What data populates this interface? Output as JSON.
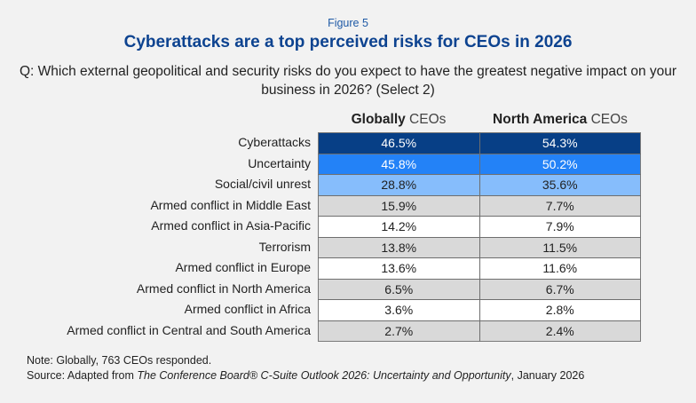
{
  "figure_label": "Figure 5",
  "title": "Cyberattacks are a top perceived risks for CEOs in 2026",
  "question": "Q: Which external geopolitical and security risks do you expect to have the greatest negative impact on your business in 2026? (Select 2)",
  "colors": {
    "title": "#0d4390",
    "rank1": "#073f86",
    "rank2": "#2382f7",
    "rank3": "#86bdfc",
    "shaded_row": "#d9d9d9",
    "white_row": "#ffffff"
  },
  "chart_data": {
    "type": "table",
    "title": "Cyberattacks are a top perceived risks for CEOs in 2026",
    "columns": [
      {
        "bold": "Globally",
        "rest": " CEOs"
      },
      {
        "bold": "North America",
        "rest": " CEOs"
      }
    ],
    "rows": [
      {
        "label": "Cyberattacks",
        "global": "46.5%",
        "na": "54.3%",
        "style": "rank1"
      },
      {
        "label": "Uncertainty",
        "global": "45.8%",
        "na": "50.2%",
        "style": "rank2"
      },
      {
        "label": "Social/civil unrest",
        "global": "28.8%",
        "na": "35.6%",
        "style": "rank3"
      },
      {
        "label": "Armed conflict in Middle East",
        "global": "15.9%",
        "na": "7.7%",
        "style": "shaded_row"
      },
      {
        "label": "Armed conflict in Asia-Pacific",
        "global": "14.2%",
        "na": "7.9%",
        "style": "white_row"
      },
      {
        "label": "Terrorism",
        "global": "13.8%",
        "na": "11.5%",
        "style": "shaded_row"
      },
      {
        "label": "Armed conflict in Europe",
        "global": "13.6%",
        "na": "11.6%",
        "style": "white_row"
      },
      {
        "label": "Armed conflict in North America",
        "global": "6.5%",
        "na": "6.7%",
        "style": "shaded_row"
      },
      {
        "label": "Armed conflict in Africa",
        "global": "3.6%",
        "na": "2.8%",
        "style": "white_row"
      },
      {
        "label": "Armed conflict in Central and South America",
        "global": "2.7%",
        "na": "2.4%",
        "style": "shaded_row"
      }
    ]
  },
  "note": "Note: Globally, 763 CEOs responded.",
  "source": {
    "prefix": "Source: Adapted from ",
    "italic": "The Conference Board® C-Suite Outlook 2026: Uncertainty and Opportunity",
    "suffix": ", January 2026"
  }
}
